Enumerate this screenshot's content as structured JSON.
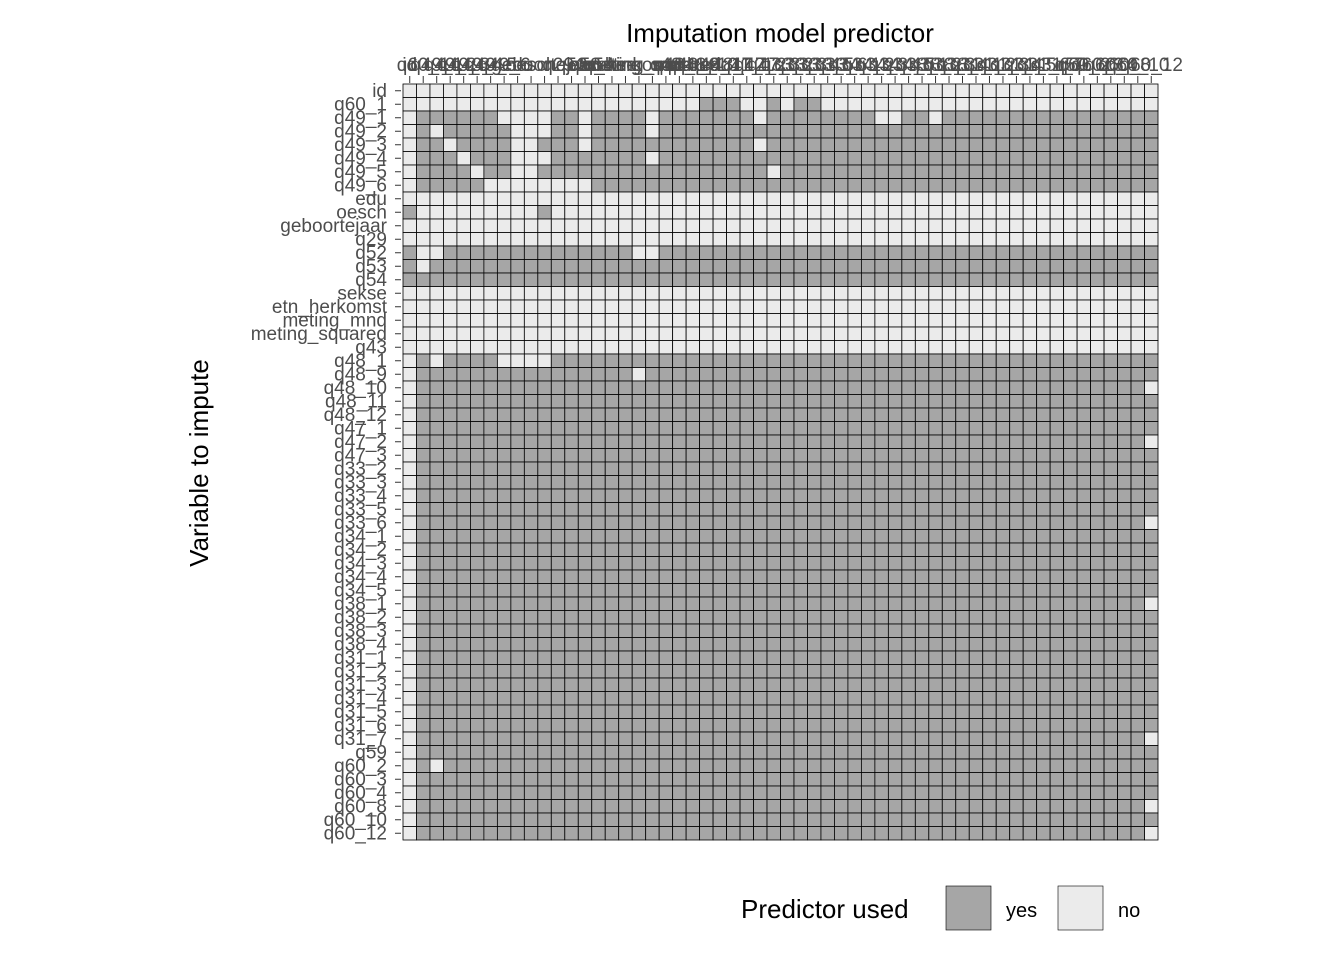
{
  "chart_data": {
    "type": "heatmap",
    "title": "",
    "xlabel": "Imputation model predictor",
    "ylabel": "Variable to impute",
    "variables": [
      "id",
      "q60_1",
      "q49_1",
      "q49_2",
      "q49_3",
      "q49_4",
      "q49_5",
      "q49_6",
      "edu",
      "oesch",
      "geboortejaar",
      "q29",
      "q52",
      "q53",
      "q54",
      "sekse",
      "etn_herkomst",
      "meting_mnd",
      "meting_squared",
      "q43",
      "q48_1",
      "q48_9",
      "q48_10",
      "q48_11",
      "q48_12",
      "q47_1",
      "q47_2",
      "q47_3",
      "q33_2",
      "q33_3",
      "q33_4",
      "q33_5",
      "q33_6",
      "q34_1",
      "q34_2",
      "q34_3",
      "q34_4",
      "q34_5",
      "q38_1",
      "q38_2",
      "q38_3",
      "q38_4",
      "q31_1",
      "q31_2",
      "q31_3",
      "q31_4",
      "q31_5",
      "q31_6",
      "q31_7",
      "q59",
      "q60_2",
      "q60_3",
      "q60_4",
      "q60_8",
      "q60_10",
      "q60_12"
    ],
    "row_labels": [
      "id",
      "q60_1",
      "q49_1",
      "q49_2",
      "q49_3",
      "q49_4",
      "q49_5",
      "q49_6",
      "edu",
      "oesch",
      "geboortejaar",
      "q29",
      "q52",
      "q53",
      "q54",
      "sekse",
      "etn_herkomst",
      "meting_mnd",
      "meting_squared",
      "q43",
      "q48_1",
      "q48_9",
      "q48_10",
      "q48_11",
      "q48_12",
      "q47_1",
      "q47_2",
      "q47_3",
      "q33_2",
      "q33_3",
      "q33_4",
      "q33_5",
      "q33_6",
      "q34_1",
      "q34_2",
      "q34_3",
      "q34_4",
      "q34_5",
      "q38_1",
      "q38_2",
      "q38_3",
      "q38_4",
      "q31_1",
      "q31_2",
      "q31_3",
      "q31_4",
      "q31_5",
      "q31_6",
      "q31_7",
      "q59",
      "q60_2",
      "q60_3",
      "q60_4",
      "q60_8",
      "q60_10",
      "q60_12"
    ],
    "x_tick_labels": [
      "id",
      "q60_1",
      "q49_1",
      "q49_2",
      "q49_3",
      "q49_4",
      "q49_5",
      "q49_6",
      "edu",
      "oesch",
      "geboortejaar",
      "q29",
      "q52",
      "q53",
      "q54",
      "sekse",
      "etn_herkomst",
      "meting_mnd",
      "meting_squared",
      "q43",
      "q48_1",
      "q48_9",
      "q48_10",
      "q48_11",
      "q48_12",
      "q47_1",
      "q47_2",
      "q47_3",
      "q33_2",
      "q33_3",
      "q33_4",
      "q33_5",
      "q33_6",
      "q34_1",
      "q34_2",
      "q34_3",
      "q34_4",
      "q34_5",
      "q38_1",
      "q38_2",
      "q38_3",
      "q38_4",
      "q31_1",
      "q31_2",
      "q31_3",
      "q31_4",
      "q31_5",
      "q31_6",
      "q31_7",
      "q59",
      "q60_2",
      "q60_3",
      "q60_4",
      "q60_8",
      "q60_10",
      "q60_12"
    ],
    "matrix_rows": [
      "00000000000000000000000000000000000000000000000000000000",
      "00000000000000000000001110010110000000000000000000000000",
      "01111110000110111101111111011111111001101111111111111111",
      "01011111000110111101111111111111111111111111111111111111",
      "01101111001110111111111111011111111111111111111111111111",
      "01110111000111111101111111111111111111111111111111111111",
      "01111011001111111111111111101111111111111111111111111111",
      "01111100000000111111111111111111111111111111111111111111",
      "00000000000000000000000000000000000000000000000000000000",
      "10000000001000000000000000000000000000000000000000000000",
      "00000000000000000000000000000000000000000000000000000000",
      "00000000000000000000000000000000000000000000000000000000",
      "10011111111111111001111111111111111111111111111111111111",
      "10111111111111111111111111111111111111111111111111111111",
      "11111111111111111111111111111111111111111111111111111111",
      "00000000000000000000000000000000000000000000000000000000",
      "00000000000000000000000000000000000000000000000000000000",
      "00000000000000000000000000000000000000000000000000000000",
      "00000000000000000000000000000000000000000000000000000000",
      "00000000000000000000000000000000000000000000000000000000",
      "01011110000111111111111111111111111111111111111111111111",
      "01111111111111111011111111111111111111111111111111111111",
      "01111111111111111111111111111111111111111111111111111110",
      "01111111111111111111111111111111111111111111111111111111",
      "01111111111111111111111111111111111111111111111111111111",
      "01111111111111111111111111111111111111111111111111111111",
      "01111111111111111111111111111111111111111111111111111110",
      "01111111111111111111111111111111111111111111111111111111",
      "01111111111111111111111111111111111111111111111111111111",
      "01111111111111111111111111111111111111111111111111111111",
      "01111111111111111111111111111111111111111111111111111111",
      "01111111111111111111111111111111111111111111111111111111",
      "01111111111111111111111111111111111111111111111111111110",
      "01111111111111111111111111111111111111111111111111111111",
      "01111111111111111111111111111111111111111111111111111111",
      "01111111111111111111111111111111111111111111111111111111",
      "01111111111111111111111111111111111111111111111111111111",
      "01111111111111111111111111111111111111111111111111111111",
      "01111111111111111111111111111111111111111111111111111110",
      "01111111111111111111111111111111111111111111111111111111",
      "01111111111111111111111111111111111111111111111111111111",
      "01111111111111111111111111111111111111111111111111111111",
      "01111111111111111111111111111111111111111111111111111111",
      "01111111111111111111111111111111111111111111111111111111",
      "01111111111111111111111111111111111111111111111111111111",
      "01111111111111111111111111111111111111111111111111111111",
      "01111111111111111111111111111111111111111111111111111111",
      "01111111111111111111111111111111111111111111111111111111",
      "01111111111111111111111111111111111111111111111111111110",
      "01111111111111111111111111111111111111111111111111111111",
      "01011111111111111111111111111111111111111111111111111111",
      "01111111111111111111111111111111111111111111111111111111",
      "01111111111111111111111111111111111111111111111111111111",
      "01111111111111111111111111111111111111111111111111111110",
      "01111111111111111111111111111111111111111111111111111111",
      "01111111111111111111111111111111111111111111111111111110"
    ],
    "cell_value_meaning": {
      "1": "yes",
      "0": "no"
    },
    "legend": {
      "title": "Predictor used",
      "position": "bottom",
      "entries": [
        {
          "label": "yes",
          "value": 1,
          "color": "#a6a6a6"
        },
        {
          "label": "no",
          "value": 0,
          "color": "#ebebeb"
        }
      ]
    },
    "grid": false
  },
  "colors": {
    "yes": "#a6a6a6",
    "no": "#ebebeb",
    "cell_border": "#000000",
    "tick_text": "#4d4d4d",
    "title_text": "#000000"
  }
}
